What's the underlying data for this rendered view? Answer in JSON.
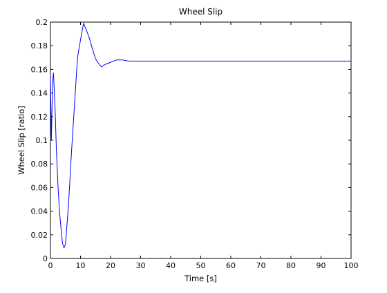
{
  "chart_data": {
    "type": "line",
    "title": "Wheel Slip",
    "xlabel": "Time [s]",
    "ylabel": "Wheel Slip [ratio]",
    "xlim": [
      0,
      100
    ],
    "ylim": [
      0,
      0.2
    ],
    "xticks": [
      0,
      10,
      20,
      30,
      40,
      50,
      60,
      70,
      80,
      90,
      100
    ],
    "yticks": [
      0,
      0.02,
      0.04,
      0.06,
      0.08,
      0.1,
      0.12,
      0.14,
      0.16,
      0.18,
      0.2
    ],
    "xtick_labels": [
      "0",
      "10",
      "20",
      "30",
      "40",
      "50",
      "60",
      "70",
      "80",
      "90",
      "100"
    ],
    "ytick_labels": [
      "0",
      "0.02",
      "0.04",
      "0.06",
      "0.08",
      "0.1",
      "0.12",
      "0.14",
      "0.16",
      "0.18",
      "0.2"
    ],
    "grid": false,
    "legend": "none",
    "series": [
      {
        "color": "#0000ff",
        "x": [
          0,
          0.3,
          0.7,
          1.0,
          1.5,
          2.0,
          2.5,
          3.0,
          3.5,
          4.0,
          4.5,
          5.0,
          6.0,
          7.0,
          8.0,
          9.0,
          10.0,
          11.0,
          12.0,
          13.0,
          14.0,
          15.0,
          16.0,
          17.0,
          18.0,
          19.0,
          20.0,
          21.0,
          22.0,
          23.0,
          24.0,
          26.0,
          28.0,
          30.0,
          35.0,
          40.0,
          50.0,
          60.0,
          70.0,
          80.0,
          90.0,
          100.0
        ],
        "y": [
          0.155,
          0.1,
          0.15,
          0.157,
          0.13,
          0.09,
          0.062,
          0.04,
          0.026,
          0.013,
          0.009,
          0.012,
          0.045,
          0.09,
          0.13,
          0.17,
          0.185,
          0.199,
          0.193,
          0.186,
          0.177,
          0.169,
          0.165,
          0.162,
          0.164,
          0.165,
          0.166,
          0.167,
          0.168,
          0.168,
          0.168,
          0.167,
          0.167,
          0.167,
          0.167,
          0.167,
          0.167,
          0.167,
          0.167,
          0.167,
          0.167,
          0.167
        ]
      }
    ]
  }
}
